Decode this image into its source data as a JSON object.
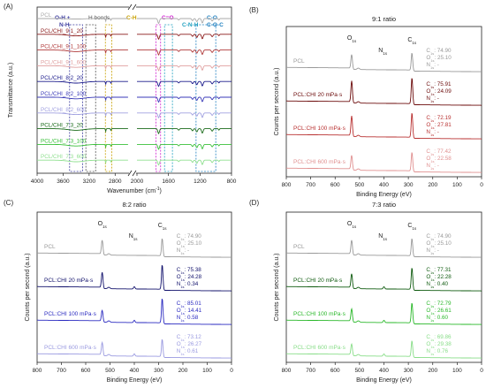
{
  "panels": {
    "A": {
      "letter": "(A)",
      "title": "",
      "xlabel": "Wavenumber (cm",
      "xlabel_sup": "-1",
      "xlabel_end": ")",
      "ylabel": "Transmittance (a.u.)",
      "xticks": [
        "4000",
        "3600",
        "3200",
        "2800",
        "2000",
        "1600",
        "1200",
        "800"
      ],
      "region_labels": [
        {
          "text": "O-H +",
          "color": "#3f3fa0"
        },
        {
          "text": "N-H",
          "color": "#3f3fa0"
        },
        {
          "text": "H bonds",
          "color": "#555555"
        },
        {
          "text": "C-H",
          "color": "#c8a000"
        },
        {
          "text": "C=O",
          "color": "#d020d0"
        },
        {
          "text": "C-N-H",
          "color": "#20a0c0"
        },
        {
          "text": "C-O",
          "color": "#2080c0"
        },
        {
          "text": "C-O-C",
          "color": "#2080c0"
        }
      ],
      "series": [
        {
          "name": "PCL",
          "color": "#aaaaaa"
        },
        {
          "name": "PCL/CHI_9:1_20",
          "color": "#8b1a1a"
        },
        {
          "name": "PCL/CHI_9:1_100",
          "color": "#b03a3a"
        },
        {
          "name": "PCL/CHI_9:1_600",
          "color": "#e0a0a0"
        },
        {
          "name": "PCL/CHI_8:2_20",
          "color": "#1a1a8b"
        },
        {
          "name": "PCL/CHI_8:2_100",
          "color": "#3a3ab8"
        },
        {
          "name": "PCL/CHI_8:2_600",
          "color": "#a0a0e0"
        },
        {
          "name": "PCL/CHI_7:3_20",
          "color": "#1a6b1a"
        },
        {
          "name": "PCL/CHI_7:3_100",
          "color": "#3ac03a"
        },
        {
          "name": "PCL/CHI_7:3_600",
          "color": "#90e090"
        }
      ]
    },
    "B": {
      "letter": "(B)",
      "title": "9:1 ratio",
      "xlabel": "Binding Energy (eV)",
      "ylabel": "Counts per second (a.u.)",
      "xticks": [
        "800",
        "700",
        "600",
        "500",
        "400",
        "300",
        "200",
        "100",
        "0"
      ],
      "peaks": {
        "O": "O",
        "N": "N",
        "C": "C",
        "sub": "1s"
      },
      "series": [
        {
          "name": "PCL",
          "color": "#999999",
          "comp": [
            {
              "el": "C",
              "val": ": 74.90"
            },
            {
              "el": "O",
              "val": ": 25.10"
            },
            {
              "el": "N",
              "val": ": -"
            }
          ]
        },
        {
          "name": "PCL:CHI 20 mPa·s",
          "color": "#6b0a0a",
          "comp": [
            {
              "el": "C",
              "val": ": 75.91"
            },
            {
              "el": "O",
              "val": ": 24.09"
            },
            {
              "el": "N",
              "val": ": -"
            }
          ]
        },
        {
          "name": "PCL:CHI 100 mPa·s",
          "color": "#b83030",
          "comp": [
            {
              "el": "C",
              "val": ": 72.19"
            },
            {
              "el": "O",
              "val": ": 27.81"
            },
            {
              "el": "N",
              "val": ": -"
            }
          ]
        },
        {
          "name": "PCL:CHI 600 mPa·s",
          "color": "#e09090",
          "comp": [
            {
              "el": "C",
              "val": ": 77.42"
            },
            {
              "el": "O",
              "val": ": 22.58"
            },
            {
              "el": "N",
              "val": ": -"
            }
          ]
        }
      ]
    },
    "C": {
      "letter": "(C)",
      "title": "8:2 ratio",
      "xlabel": "Binding Energy (eV)",
      "ylabel": "Counts per second (a.u.)",
      "xticks": [
        "800",
        "700",
        "600",
        "500",
        "400",
        "300",
        "200",
        "100",
        "0"
      ],
      "peaks": {
        "O": "O",
        "N": "N",
        "C": "C",
        "sub": "1s"
      },
      "series": [
        {
          "name": "PCL",
          "color": "#999999",
          "comp": [
            {
              "el": "C",
              "val": ": 74.90"
            },
            {
              "el": "O",
              "val": ": 25.10"
            },
            {
              "el": "N",
              "val": ": -"
            }
          ]
        },
        {
          "name": "PCL:CHI 20 mPa·s",
          "color": "#10106b",
          "comp": [
            {
              "el": "C",
              "val": ": 75.38"
            },
            {
              "el": "O",
              "val": ": 24.28"
            },
            {
              "el": "N",
              "val": ": 0.34"
            }
          ]
        },
        {
          "name": "PCL:CHI 100 mPa·s",
          "color": "#2a2ac0",
          "comp": [
            {
              "el": "C",
              "val": ": 85.01"
            },
            {
              "el": "O",
              "val": ": 14.41"
            },
            {
              "el": "N",
              "val": ": 0.58"
            }
          ]
        },
        {
          "name": "PCL:CHI 600 mPa·s",
          "color": "#9a9ae0",
          "comp": [
            {
              "el": "C",
              "val": ": 73.12"
            },
            {
              "el": "O",
              "val": ": 26.27"
            },
            {
              "el": "N",
              "val": ": 0.61"
            }
          ]
        }
      ]
    },
    "D": {
      "letter": "(D)",
      "title": "7:3 ratio",
      "xlabel": "Binding Energy (eV)",
      "ylabel": "Counts per second (a.u.)",
      "xticks": [
        "800",
        "700",
        "600",
        "500",
        "400",
        "300",
        "200",
        "100",
        "0"
      ],
      "peaks": {
        "O": "O",
        "N": "N",
        "C": "C",
        "sub": "1s"
      },
      "series": [
        {
          "name": "PCL",
          "color": "#999999",
          "comp": [
            {
              "el": "C",
              "val": ": 74.90"
            },
            {
              "el": "O",
              "val": ": 25.10"
            },
            {
              "el": "N",
              "val": ": -"
            }
          ]
        },
        {
          "name": "PCL:CHI 20 mPa·s",
          "color": "#0e5a0e",
          "comp": [
            {
              "el": "C",
              "val": ": 77.31"
            },
            {
              "el": "O",
              "val": ": 22.28"
            },
            {
              "el": "N",
              "val": ": 0.40"
            }
          ]
        },
        {
          "name": "PCL:CHI 100 mPa·s",
          "color": "#2ab82a",
          "comp": [
            {
              "el": "C",
              "val": ": 72.79"
            },
            {
              "el": "O",
              "val": ": 26.61"
            },
            {
              "el": "N",
              "val": ": 0.60"
            }
          ]
        },
        {
          "name": "PCL:CHI 600 mPa·s",
          "color": "#88dd88",
          "comp": [
            {
              "el": "C",
              "val": ": 69.86"
            },
            {
              "el": "O",
              "val": ": 29.38"
            },
            {
              "el": "N",
              "val": ": 0.76"
            }
          ]
        }
      ]
    }
  },
  "chart_data": [
    {
      "type": "line",
      "title": "",
      "xlabel": "Wavenumber (cm-1)",
      "ylabel": "Transmittance (a.u.)",
      "xlim": [
        4000,
        800
      ],
      "x_axis_break": [
        2600,
        2000
      ],
      "regions_cm-1": {
        "O-H + N-H": [
          3500,
          3300
        ],
        "H bonds": [
          3250,
          3100
        ],
        "C-H": [
          2950,
          2850
        ],
        "C=O": [
          1760,
          1700
        ],
        "C-N-H": [
          1650,
          1550
        ],
        "C-O / C-O-C": [
          1250,
          1000
        ]
      },
      "series": [
        "PCL",
        "PCL/CHI_9:1_20",
        "PCL/CHI_9:1_100",
        "PCL/CHI_9:1_600",
        "PCL/CHI_8:2_20",
        "PCL/CHI_8:2_100",
        "PCL/CHI_8:2_600",
        "PCL/CHI_7:3_20",
        "PCL/CHI_7:3_100",
        "PCL/CHI_7:3_600"
      ],
      "peaks_cm-1": [
        2945,
        2865,
        1725,
        1470,
        1295,
        1240,
        1170,
        1045,
        960,
        730
      ]
    },
    {
      "type": "line",
      "title": "9:1 ratio",
      "xlabel": "Binding Energy (eV)",
      "ylabel": "Counts per second (a.u.)",
      "xlim": [
        800,
        0
      ],
      "peaks_eV": {
        "O1s": 532,
        "N1s": 400,
        "C1s": 285
      },
      "series": [
        {
          "name": "PCL",
          "C1s": 74.9,
          "O1s": 25.1,
          "N1s": null,
          "o_height": 0.5,
          "c_height": 0.6
        },
        {
          "name": "PCL:CHI 20 mPa·s",
          "C1s": 75.91,
          "O1s": 24.09,
          "N1s": null,
          "o_height": 0.75,
          "c_height": 0.9
        },
        {
          "name": "PCL:CHI 100 mPa·s",
          "C1s": 72.19,
          "O1s": 27.81,
          "N1s": null,
          "o_height": 0.7,
          "c_height": 0.85
        },
        {
          "name": "PCL:CHI 600 mPa·s",
          "C1s": 77.42,
          "O1s": 22.58,
          "N1s": null,
          "o_height": 0.5,
          "c_height": 0.65
        }
      ]
    },
    {
      "type": "line",
      "title": "8:2 ratio",
      "xlabel": "Binding Energy (eV)",
      "ylabel": "Counts per second (a.u.)",
      "xlim": [
        800,
        0
      ],
      "peaks_eV": {
        "O1s": 532,
        "N1s": 400,
        "C1s": 285
      },
      "series": [
        {
          "name": "PCL",
          "C1s": 74.9,
          "O1s": 25.1,
          "N1s": null,
          "o_height": 0.5,
          "c_height": 0.6
        },
        {
          "name": "PCL:CHI 20 mPa·s",
          "C1s": 75.38,
          "O1s": 24.28,
          "N1s": 0.34,
          "o_height": 0.55,
          "c_height": 0.85
        },
        {
          "name": "PCL:CHI 100 mPa·s",
          "C1s": 85.01,
          "O1s": 14.41,
          "N1s": 0.58,
          "o_height": 0.4,
          "c_height": 0.85
        },
        {
          "name": "PCL:CHI 600 mPa·s",
          "C1s": 73.12,
          "O1s": 26.27,
          "N1s": 0.61,
          "o_height": 0.45,
          "c_height": 0.6
        }
      ]
    },
    {
      "type": "line",
      "title": "7:3 ratio",
      "xlabel": "Binding Energy (eV)",
      "ylabel": "Counts per second (a.u.)",
      "xlim": [
        800,
        0
      ],
      "peaks_eV": {
        "O1s": 532,
        "N1s": 400,
        "C1s": 285
      },
      "series": [
        {
          "name": "PCL",
          "C1s": 74.9,
          "O1s": 25.1,
          "N1s": null,
          "o_height": 0.5,
          "c_height": 0.6
        },
        {
          "name": "PCL:CHI 20 mPa·s",
          "C1s": 77.31,
          "O1s": 22.28,
          "N1s": 0.4,
          "o_height": 0.5,
          "c_height": 0.75
        },
        {
          "name": "PCL:CHI 100 mPa·s",
          "C1s": 72.79,
          "O1s": 26.61,
          "N1s": 0.6,
          "o_height": 0.45,
          "c_height": 0.7
        },
        {
          "name": "PCL:CHI 600 mPa·s",
          "C1s": 69.86,
          "O1s": 29.38,
          "N1s": 0.76,
          "o_height": 0.4,
          "c_height": 0.55
        }
      ]
    }
  ]
}
